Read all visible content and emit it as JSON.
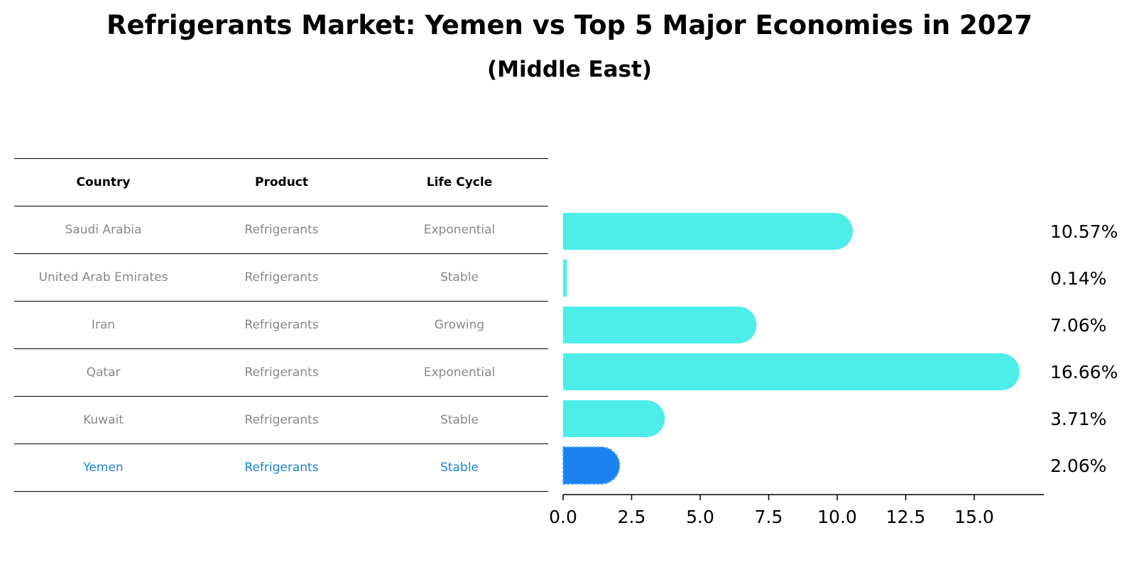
{
  "title": "Refrigerants Market: Yemen vs Top 5 Major Economies in 2027",
  "subtitle": "(Middle East)",
  "table": {
    "headers": [
      "Country",
      "Product",
      "Life Cycle"
    ],
    "rows": [
      [
        "Saudi Arabia",
        "Refrigerants",
        "Exponential"
      ],
      [
        "United Arab Emirates",
        "Refrigerants",
        "Stable"
      ],
      [
        "Iran",
        "Refrigerants",
        "Growing"
      ],
      [
        "Qatar",
        "Refrigerants",
        "Exponential"
      ],
      [
        "Kuwait",
        "Refrigerants",
        "Stable"
      ],
      [
        "Yemen",
        "Refrigerants",
        "Stable"
      ]
    ]
  },
  "colors": {
    "bar": "#4deee9",
    "highlight": "#1b82f0",
    "highlight_text": "#1b82d6",
    "muted_text": "#888888"
  },
  "chart_data": {
    "type": "bar",
    "orientation": "horizontal",
    "categories": [
      "Saudi Arabia",
      "United Arab Emirates",
      "Iran",
      "Qatar",
      "Kuwait",
      "Yemen"
    ],
    "values": [
      10.57,
      0.14,
      7.06,
      16.66,
      3.71,
      2.06
    ],
    "labels": [
      "10.57%",
      "0.14%",
      "7.06%",
      "16.66%",
      "3.71%",
      "2.06%"
    ],
    "highlight": "Yemen",
    "xlim": [
      0,
      17.5
    ],
    "xticks": [
      "0.0",
      "2.5",
      "5.0",
      "7.5",
      "10.0",
      "12.5",
      "15.0"
    ],
    "xlabel": "",
    "ylabel": "",
    "grid": false
  }
}
